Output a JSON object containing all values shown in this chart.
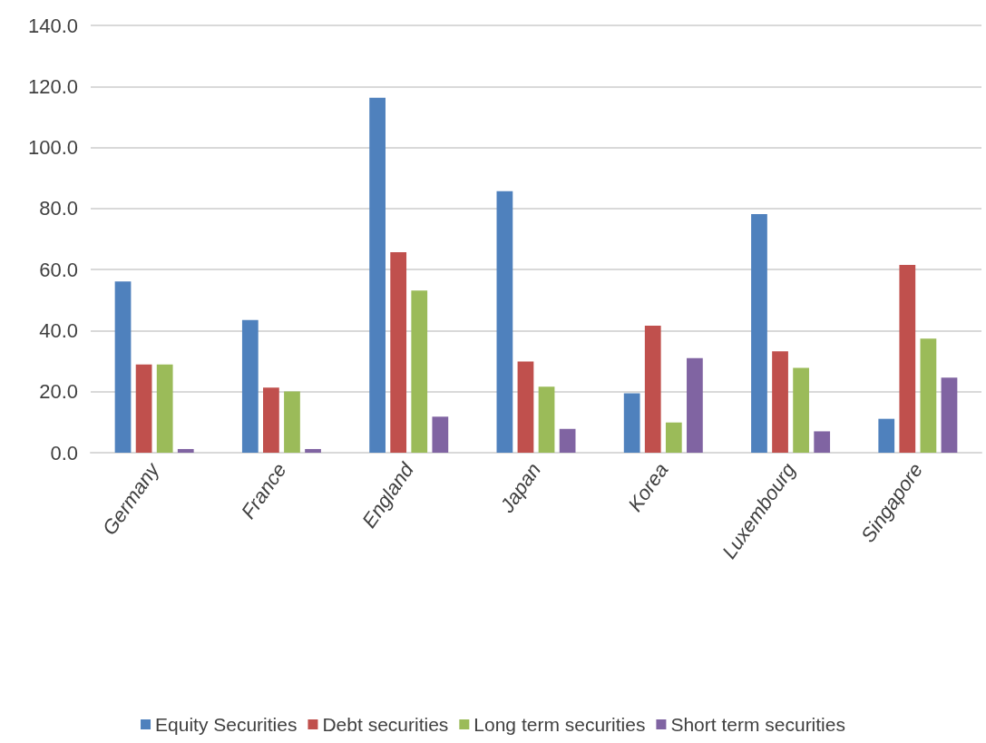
{
  "chart_data": {
    "type": "bar",
    "categories": [
      "Germany",
      "France",
      "England",
      "Japan",
      "Korea",
      "Luxembourg",
      "Singapore"
    ],
    "series": [
      {
        "name": "Equity Securities",
        "color": "#4f81bd",
        "values": [
          56.1,
          43.5,
          116.3,
          85.7,
          19.5,
          78.2,
          11.1
        ]
      },
      {
        "name": "Debt securities",
        "color": "#c0504d",
        "values": [
          28.9,
          21.3,
          65.7,
          29.9,
          41.6,
          33.2,
          61.5
        ]
      },
      {
        "name": "Long term securities",
        "color": "#9bbb59",
        "values": [
          28.9,
          20.1,
          53.1,
          21.6,
          9.9,
          27.8,
          37.4
        ]
      },
      {
        "name": "Short term securities",
        "color": "#8064a2",
        "values": [
          1.2,
          1.2,
          11.8,
          7.8,
          31.0,
          7.0,
          24.6
        ]
      }
    ],
    "ylim": [
      0,
      140
    ],
    "yticks": [
      {
        "value": 0,
        "label": "0.0"
      },
      {
        "value": 20,
        "label": "20.0"
      },
      {
        "value": 40,
        "label": "40.0"
      },
      {
        "value": 60,
        "label": "60.0"
      },
      {
        "value": 80,
        "label": "80.0"
      },
      {
        "value": 100,
        "label": "100.0"
      },
      {
        "value": 120,
        "label": "120.0"
      },
      {
        "value": 140,
        "label": "140.0"
      }
    ],
    "grid": "y",
    "legend": "bottom"
  }
}
